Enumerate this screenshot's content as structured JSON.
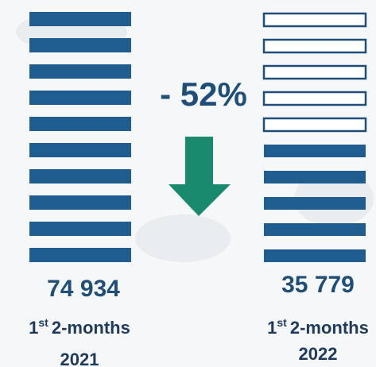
{
  "change": "- 52%",
  "left": {
    "value": "74 934",
    "ordinal": "1",
    "suffix": "st",
    "period": "2-months",
    "year": "2021"
  },
  "right": {
    "value": "35 779",
    "ordinal": "1",
    "suffix": "st",
    "period": "2-months",
    "year": "2022"
  }
}
